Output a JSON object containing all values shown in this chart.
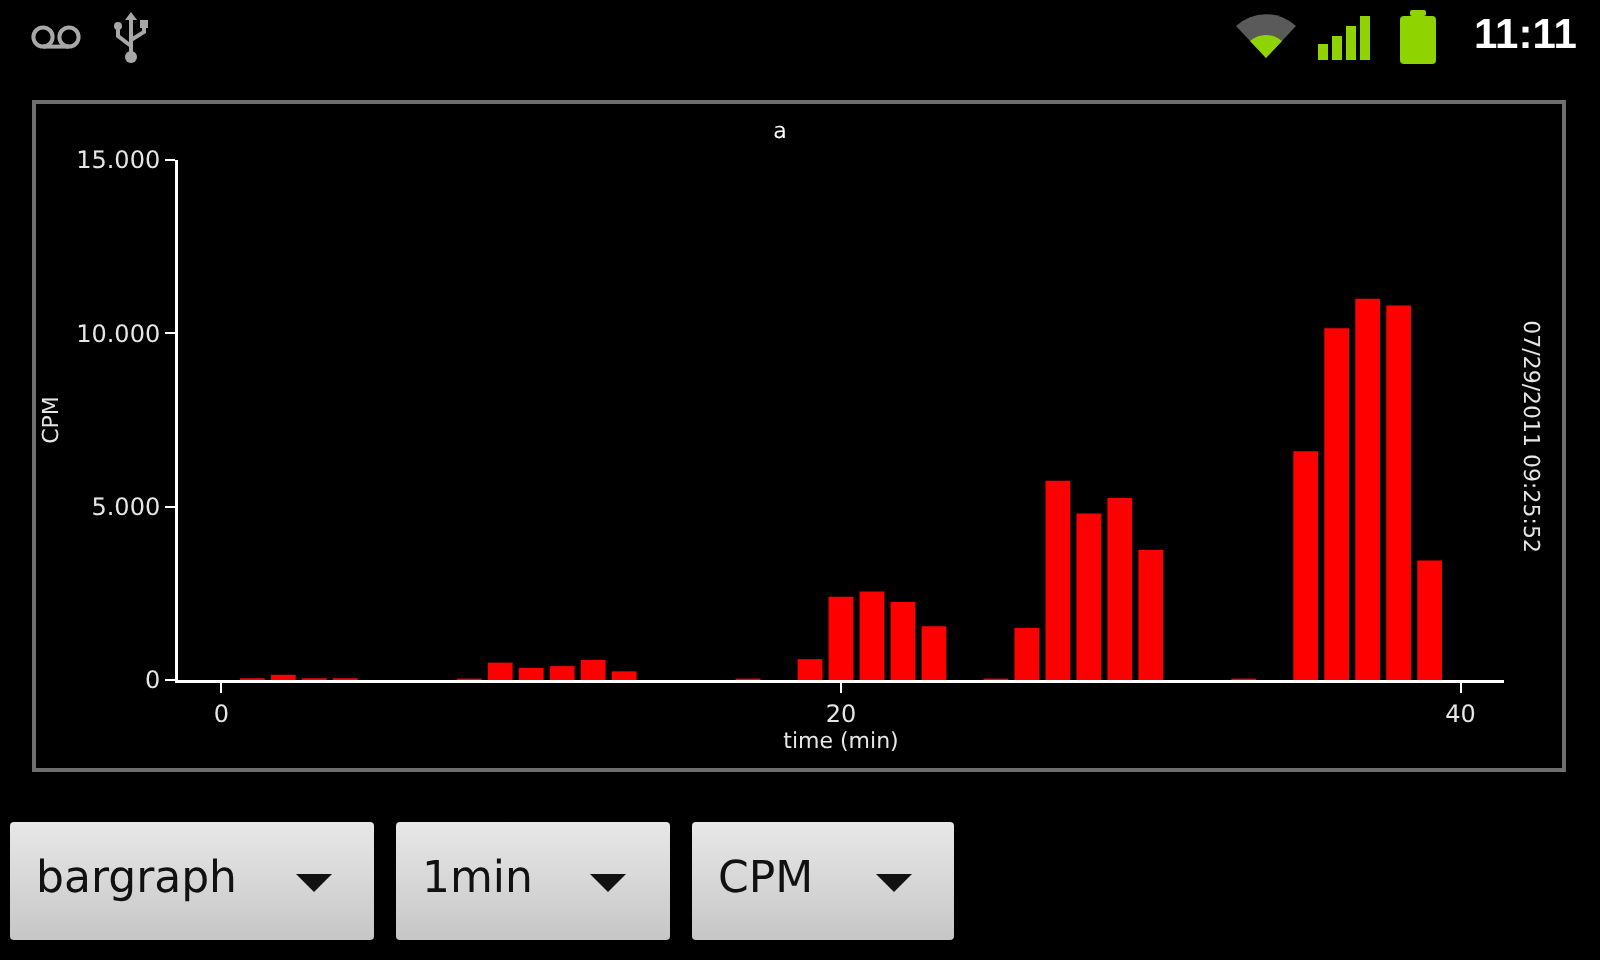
{
  "chart_data": {
    "type": "bar",
    "title": "a",
    "xlabel": "time (min)",
    "ylabel": "CPM",
    "annotations": [
      "07/29/2011 09:25:52",
      "11:11",
      "bargraph",
      "1min",
      "CPM"
    ],
    "x": [
      1,
      2,
      3,
      4,
      8,
      9,
      10,
      11,
      12,
      13,
      17,
      19,
      20,
      21,
      22,
      23,
      25,
      26,
      27,
      28,
      29,
      30,
      33,
      35,
      36,
      37,
      38,
      39
    ],
    "values": [
      50,
      150,
      50,
      50,
      40,
      500,
      350,
      400,
      580,
      250,
      40,
      600,
      2400,
      2550,
      2250,
      1550,
      40,
      1500,
      5750,
      4800,
      5250,
      3750,
      40,
      6600,
      10150,
      11000,
      10800,
      3450
    ],
    "color": "#ff0000",
    "xlim": [
      -1.4,
      41.4
    ],
    "xticks": [
      0,
      20,
      40
    ],
    "ylim": [
      0,
      15000
    ],
    "yticks": [
      0,
      {
        "value": 5000,
        "label": "5.000"
      },
      {
        "value": 10000,
        "label": "10.000"
      },
      {
        "value": 15000,
        "label": "15.000"
      }
    ]
  }
}
